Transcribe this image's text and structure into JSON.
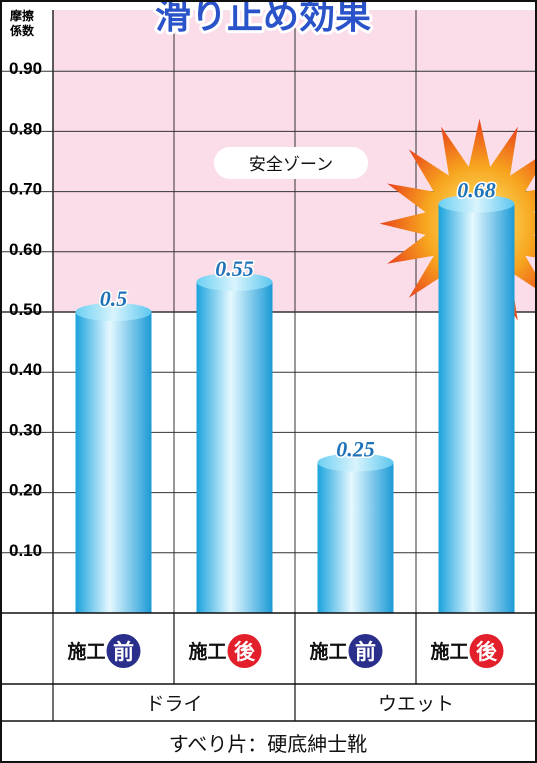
{
  "title": "滑り止め効果",
  "y_axis_label": [
    "摩擦",
    "係数"
  ],
  "safe_zone_label": "安全ゾーン",
  "chart_data": {
    "type": "bar",
    "title": "滑り止め効果",
    "ylabel": "摩擦係数",
    "ylim": [
      0,
      1.0
    ],
    "yticks": [
      "0.10",
      "0.20",
      "0.30",
      "0.40",
      "0.50",
      "0.60",
      "0.70",
      "0.80",
      "0.90"
    ],
    "grid": true,
    "safe_zone": {
      "from": 0.5,
      "to": 1.0,
      "label": "安全ゾーン",
      "color": "#fbdde9"
    },
    "bar_color": "#3cbcea",
    "categories": [
      {
        "prefix": "施工",
        "badge": "前",
        "badge_color": "#2a2f8c",
        "value": 0.5,
        "label": "0.5",
        "group": "ドライ"
      },
      {
        "prefix": "施工",
        "badge": "後",
        "badge_color": "#e21f2a",
        "value": 0.55,
        "label": "0.55",
        "group": "ドライ"
      },
      {
        "prefix": "施工",
        "badge": "前",
        "badge_color": "#2a2f8c",
        "value": 0.25,
        "label": "0.25",
        "group": "ウエット"
      },
      {
        "prefix": "施工",
        "badge": "後",
        "badge_color": "#e21f2a",
        "value": 0.68,
        "label": "0.68",
        "group": "ウエット",
        "highlight": true
      }
    ],
    "groups": [
      "ドライ",
      "ウエット"
    ],
    "footer": "すべり片：硬底紳士靴"
  },
  "colors": {
    "title_fill": "#2a52c9",
    "title_outline": "#ffffff",
    "value_label": "#1d72b8",
    "highlight_burst": "#f08a1c"
  }
}
